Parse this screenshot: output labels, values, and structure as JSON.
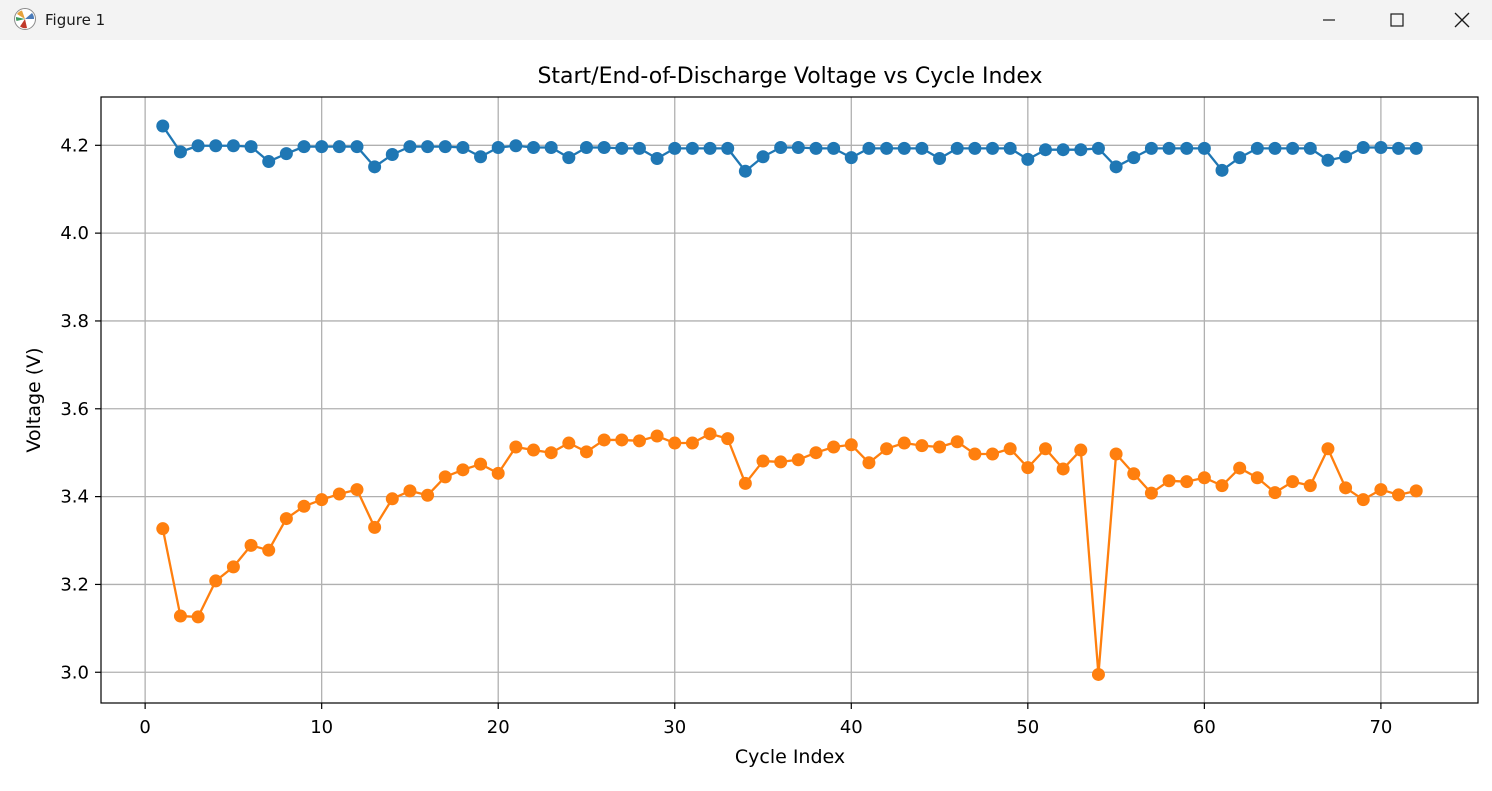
{
  "window": {
    "title": "Figure 1",
    "icons": [
      "matplotlib-icon",
      "minimize-icon",
      "maximize-icon",
      "close-icon"
    ]
  },
  "chart_data": {
    "type": "line",
    "title": "Start/End-of-Discharge Voltage vs Cycle Index",
    "xlabel": "Cycle Index",
    "ylabel": "Voltage (V)",
    "xlim": [
      -2.5,
      75.5
    ],
    "ylim": [
      2.93,
      4.31
    ],
    "xticks": [
      0,
      10,
      20,
      30,
      40,
      50,
      60,
      70
    ],
    "yticks": [
      3.0,
      3.2,
      3.4,
      3.6,
      3.8,
      4.0,
      4.2
    ],
    "ytick_labels": [
      "3.0",
      "3.2",
      "3.4",
      "3.6",
      "3.8",
      "4.0",
      "4.2"
    ],
    "grid": true,
    "marker": "circle",
    "x": [
      1,
      2,
      3,
      4,
      5,
      6,
      7,
      8,
      9,
      10,
      11,
      12,
      13,
      14,
      15,
      16,
      17,
      18,
      19,
      20,
      21,
      22,
      23,
      24,
      25,
      26,
      27,
      28,
      29,
      30,
      31,
      32,
      33,
      34,
      35,
      36,
      37,
      38,
      39,
      40,
      41,
      42,
      43,
      44,
      45,
      46,
      47,
      48,
      49,
      50,
      51,
      52,
      53,
      54,
      55,
      56,
      57,
      58,
      59,
      60,
      61,
      62,
      63,
      64,
      65,
      66,
      67,
      68,
      69,
      70,
      71,
      72
    ],
    "series": [
      {
        "color": "#1f77b4",
        "values": [
          4.244,
          4.185,
          4.199,
          4.199,
          4.199,
          4.197,
          4.163,
          4.181,
          4.197,
          4.197,
          4.197,
          4.197,
          4.151,
          4.179,
          4.197,
          4.197,
          4.197,
          4.195,
          4.174,
          4.195,
          4.199,
          4.195,
          4.195,
          4.172,
          4.195,
          4.195,
          4.193,
          4.193,
          4.17,
          4.193,
          4.193,
          4.193,
          4.193,
          4.141,
          4.174,
          4.195,
          4.195,
          4.193,
          4.193,
          4.172,
          4.193,
          4.193,
          4.193,
          4.193,
          4.17,
          4.193,
          4.193,
          4.193,
          4.193,
          4.168,
          4.19,
          4.19,
          4.19,
          4.193,
          4.151,
          4.172,
          4.193,
          4.193,
          4.193,
          4.193,
          4.143,
          4.172,
          4.193,
          4.193,
          4.193,
          4.193,
          4.166,
          4.174,
          4.195,
          4.195,
          4.193,
          4.193
        ]
      },
      {
        "color": "#ff7f0e",
        "values": [
          3.327,
          3.128,
          3.126,
          3.208,
          3.24,
          3.289,
          3.278,
          3.35,
          3.378,
          3.393,
          3.406,
          3.416,
          3.33,
          3.395,
          3.413,
          3.403,
          3.445,
          3.461,
          3.474,
          3.453,
          3.513,
          3.506,
          3.5,
          3.522,
          3.502,
          3.529,
          3.529,
          3.527,
          3.538,
          3.522,
          3.522,
          3.543,
          3.532,
          3.43,
          3.481,
          3.479,
          3.484,
          3.5,
          3.513,
          3.518,
          3.477,
          3.509,
          3.522,
          3.516,
          3.513,
          3.525,
          3.497,
          3.497,
          3.509,
          3.466,
          3.509,
          3.463,
          3.506,
          2.995,
          3.497,
          3.452,
          3.408,
          3.436,
          3.434,
          3.443,
          3.425,
          3.465,
          3.443,
          3.409,
          3.434,
          3.425,
          3.509,
          3.42,
          3.393,
          3.416,
          3.404,
          3.413
        ]
      }
    ]
  }
}
